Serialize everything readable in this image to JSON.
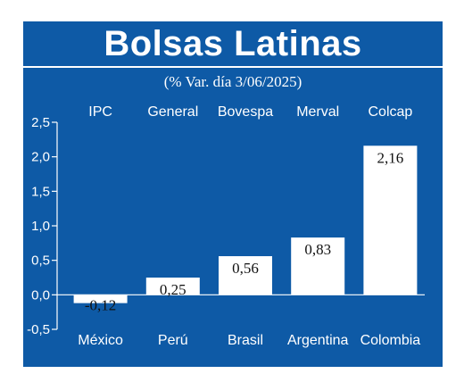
{
  "header": {
    "title": "Bolsas Latinas",
    "subtitle": "(% Var. día 3/06/2025)"
  },
  "colors": {
    "background": "#0e5aa6",
    "bar": "#ffffff",
    "text": "#ffffff",
    "value_text": "#111111"
  },
  "chart_data": {
    "type": "bar",
    "title": "Bolsas Latinas",
    "subtitle": "(% Var. día 3/06/2025)",
    "indices": [
      "IPC",
      "General",
      "Bovespa",
      "Merval",
      "Colcap"
    ],
    "categories": [
      "México",
      "Perú",
      "Brasil",
      "Argentina",
      "Colombia"
    ],
    "values": [
      -0.12,
      0.25,
      0.56,
      0.83,
      2.16
    ],
    "value_labels": [
      "-0,12",
      "0,25",
      "0,56",
      "0,83",
      "2,16"
    ],
    "yticks": [
      -0.5,
      0.0,
      0.5,
      1.0,
      1.5,
      2.0,
      2.5
    ],
    "ytick_labels": [
      "-0,5",
      "0,0",
      "0,5",
      "1,0",
      "1,5",
      "2,0",
      "2,5"
    ],
    "ylim": [
      -0.5,
      2.5
    ],
    "grid": false,
    "legend": "none"
  }
}
